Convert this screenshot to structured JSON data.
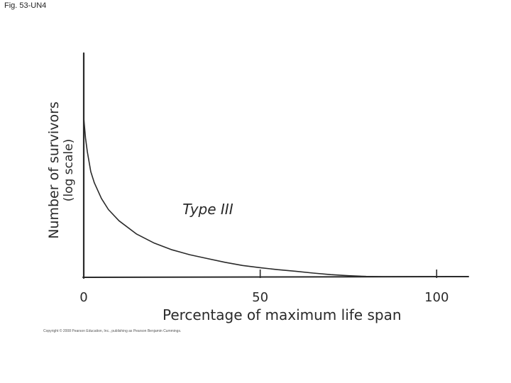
{
  "figure_label": "Fig. 53-UN4",
  "copyright": "Copyright © 2008 Pearson Education, Inc., publishing as Pearson Benjamin Cummings.",
  "colors": {
    "ink": "#2a2a2a"
  },
  "chart_data": {
    "type": "line",
    "title": "",
    "xlabel": "Percentage of maximum life span",
    "ylabel": "Number of survivors",
    "ylabel_sub": "(log scale)",
    "xlim": [
      0,
      109
    ],
    "ylim": [
      0,
      1
    ],
    "x_ticks": [
      {
        "value": 0,
        "label": "0"
      },
      {
        "value": 50,
        "label": "50"
      },
      {
        "value": 100,
        "label": "100"
      }
    ],
    "grid": false,
    "legend": "none",
    "annotations": [
      {
        "text": "Type III",
        "x": 28,
        "y": 0.28
      }
    ],
    "series": [
      {
        "x": [
          0,
          0.5,
          1,
          2,
          3,
          5,
          7,
          10,
          15,
          20,
          25,
          30,
          35,
          40,
          45,
          50,
          55,
          60,
          65,
          70,
          75,
          80,
          85,
          90,
          95,
          100
        ],
        "y": [
          0.71,
          0.62,
          0.56,
          0.47,
          0.42,
          0.35,
          0.3,
          0.25,
          0.19,
          0.15,
          0.12,
          0.098,
          0.081,
          0.064,
          0.05,
          0.04,
          0.031,
          0.024,
          0.016,
          0.009,
          0.004,
          0.001,
          0,
          0,
          0,
          0
        ]
      }
    ]
  }
}
